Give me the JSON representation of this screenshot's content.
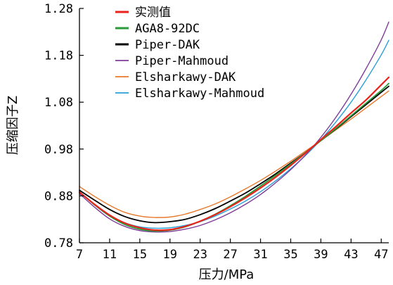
{
  "chart_data": {
    "type": "line",
    "xlabel": "压力/MPa",
    "ylabel": "压缩因子Z",
    "xlim": [
      7,
      48
    ],
    "ylim": [
      0.78,
      1.28
    ],
    "x_ticks": [
      "7",
      "11",
      "15",
      "19",
      "23",
      "27",
      "31",
      "35",
      "39",
      "43",
      "47"
    ],
    "y_ticks": [
      "0.78",
      "0.88",
      "0.98",
      "1.08",
      "1.18",
      "1.28"
    ],
    "grid": false,
    "legend_position": "top-left",
    "series": [
      {
        "name": "实测值",
        "color": "#e8231c",
        "width": 2.2,
        "x": [
          7,
          9,
          11,
          13,
          15,
          17,
          19,
          21,
          23,
          25,
          27,
          29,
          31,
          33,
          35,
          37,
          39,
          41,
          43,
          45,
          47,
          48
        ],
        "y": [
          0.888,
          0.862,
          0.839,
          0.822,
          0.812,
          0.807,
          0.808,
          0.815,
          0.826,
          0.84,
          0.857,
          0.876,
          0.897,
          0.92,
          0.945,
          0.972,
          1.0,
          1.028,
          1.057,
          1.085,
          1.117,
          1.133
        ]
      },
      {
        "name": "AGA8-92DC",
        "color": "#2a9a3a",
        "width": 1.8,
        "x": [
          7,
          9,
          11,
          13,
          15,
          17,
          19,
          21,
          23,
          25,
          27,
          29,
          31,
          33,
          35,
          37,
          39,
          41,
          43,
          45,
          47,
          48
        ],
        "y": [
          0.889,
          0.861,
          0.837,
          0.819,
          0.809,
          0.805,
          0.807,
          0.814,
          0.826,
          0.841,
          0.859,
          0.879,
          0.901,
          0.924,
          0.948,
          0.973,
          0.998,
          1.024,
          1.051,
          1.078,
          1.105,
          1.12
        ]
      },
      {
        "name": "Piper-DAK",
        "color": "#000000",
        "width": 1.8,
        "x": [
          7,
          9,
          11,
          13,
          15,
          17,
          19,
          21,
          23,
          25,
          27,
          29,
          31,
          33,
          35,
          37,
          39,
          41,
          43,
          45,
          47,
          48
        ],
        "y": [
          0.892,
          0.871,
          0.851,
          0.836,
          0.827,
          0.823,
          0.825,
          0.83,
          0.84,
          0.853,
          0.869,
          0.886,
          0.906,
          0.927,
          0.95,
          0.973,
          0.998,
          1.023,
          1.049,
          1.075,
          1.101,
          1.114
        ]
      },
      {
        "name": "Piper-Mahmoud",
        "color": "#7d3c98",
        "width": 1.4,
        "x": [
          7,
          9,
          11,
          13,
          15,
          17,
          19,
          21,
          23,
          25,
          27,
          29,
          31,
          33,
          35,
          37,
          39,
          41,
          43,
          45,
          47,
          48
        ],
        "y": [
          0.885,
          0.856,
          0.831,
          0.815,
          0.806,
          0.803,
          0.804,
          0.809,
          0.817,
          0.829,
          0.844,
          0.862,
          0.883,
          0.908,
          0.936,
          0.968,
          1.005,
          1.048,
          1.097,
          1.152,
          1.213,
          1.251
        ]
      },
      {
        "name": "Elsharkawy-DAK",
        "color": "#e8782c",
        "width": 1.4,
        "x": [
          7,
          9,
          11,
          13,
          15,
          17,
          19,
          21,
          23,
          25,
          27,
          29,
          31,
          33,
          35,
          37,
          39,
          41,
          43,
          45,
          47,
          48
        ],
        "y": [
          0.9,
          0.879,
          0.86,
          0.845,
          0.837,
          0.834,
          0.835,
          0.841,
          0.851,
          0.863,
          0.878,
          0.895,
          0.913,
          0.933,
          0.954,
          0.976,
          0.998,
          1.021,
          1.044,
          1.068,
          1.092,
          1.104
        ]
      },
      {
        "name": "Elsharkawy-Mahmoud",
        "color": "#2a9fd6",
        "width": 1.4,
        "x": [
          7,
          9,
          11,
          13,
          15,
          17,
          19,
          21,
          23,
          25,
          27,
          29,
          31,
          33,
          35,
          37,
          39,
          41,
          43,
          45,
          47,
          48
        ],
        "y": [
          0.888,
          0.862,
          0.839,
          0.823,
          0.814,
          0.811,
          0.812,
          0.817,
          0.825,
          0.837,
          0.852,
          0.869,
          0.889,
          0.912,
          0.938,
          0.967,
          1.0,
          1.038,
          1.08,
          1.128,
          1.181,
          1.212
        ]
      }
    ]
  }
}
